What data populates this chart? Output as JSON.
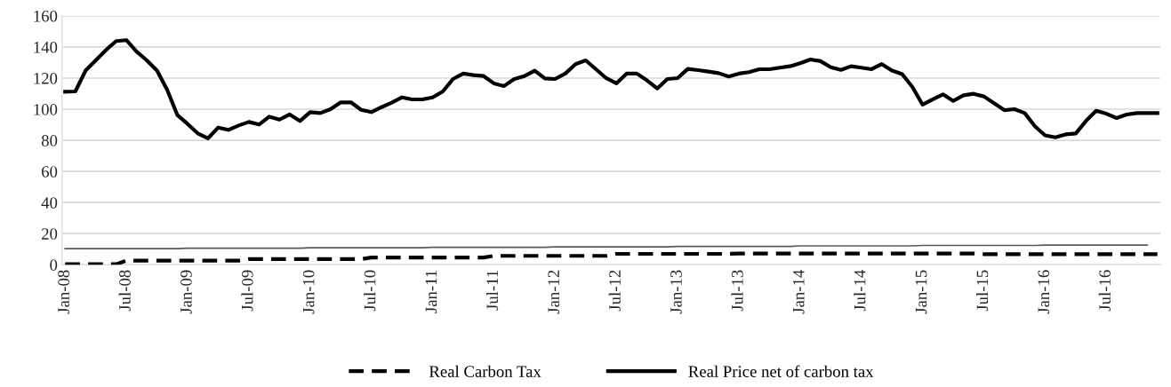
{
  "chart_data": {
    "type": "line",
    "categories": [
      "Jan-08",
      null,
      null,
      null,
      null,
      null,
      "Jul-08",
      null,
      null,
      null,
      null,
      null,
      "Jan-09",
      null,
      null,
      null,
      null,
      null,
      "Jul-09",
      null,
      null,
      null,
      null,
      null,
      "Jan-10",
      null,
      null,
      null,
      null,
      null,
      "Jul-10",
      null,
      null,
      null,
      null,
      null,
      "Jan-11",
      null,
      null,
      null,
      null,
      null,
      "Jul-11",
      null,
      null,
      null,
      null,
      null,
      "Jan-12",
      null,
      null,
      null,
      null,
      null,
      "Jul-12",
      null,
      null,
      null,
      null,
      null,
      "Jan-13",
      null,
      null,
      null,
      null,
      null,
      "Jul-13",
      null,
      null,
      null,
      null,
      null,
      "Jan-14",
      null,
      null,
      null,
      null,
      null,
      "Jul-14",
      null,
      null,
      null,
      null,
      null,
      "Jan-15",
      null,
      null,
      null,
      null,
      null,
      "Jul-15",
      null,
      null,
      null,
      null,
      null,
      "Jan-16",
      null,
      null,
      null,
      null,
      null,
      "Jul-16",
      null,
      null,
      null,
      null,
      null
    ],
    "series": [
      {
        "name": "Real Carbon Tax",
        "color": "#000000",
        "line_style": "dashed",
        "values": [
          0.3,
          0.3,
          0.3,
          0.3,
          0.3,
          0.3,
          2.6,
          2.6,
          2.6,
          2.6,
          2.6,
          2.6,
          2.6,
          2.6,
          2.6,
          2.6,
          2.6,
          2.6,
          3.6,
          3.6,
          3.6,
          3.6,
          3.6,
          3.6,
          3.6,
          3.6,
          3.6,
          3.6,
          3.6,
          3.6,
          4.6,
          4.6,
          4.6,
          4.6,
          4.6,
          4.6,
          4.6,
          4.6,
          4.6,
          4.6,
          4.6,
          4.6,
          5.7,
          5.7,
          5.7,
          5.7,
          5.7,
          5.7,
          5.7,
          5.7,
          5.7,
          5.7,
          5.7,
          5.7,
          7.0,
          7.0,
          7.0,
          7.0,
          7.0,
          7.0,
          7.0,
          7.0,
          7.0,
          7.0,
          7.0,
          7.0,
          7.2,
          7.2,
          7.2,
          7.2,
          7.2,
          7.2,
          7.2,
          7.2,
          7.2,
          7.2,
          7.2,
          7.2,
          7.2,
          7.2,
          7.2,
          7.2,
          7.2,
          7.2,
          7.2,
          7.2,
          7.2,
          7.2,
          7.2,
          7.2,
          6.8,
          6.8,
          6.8,
          6.8,
          6.8,
          6.8,
          6.8,
          6.8,
          6.8,
          6.8,
          6.8,
          6.8,
          6.8,
          6.8,
          6.8,
          6.8,
          6.8,
          6.8
        ]
      },
      {
        "name": "Real Price net of carbon tax",
        "color": "#000000",
        "line_style": "solid",
        "values": [
          111.2,
          111.4,
          124.8,
          131.4,
          138,
          143.8,
          144.4,
          137,
          131.4,
          124.8,
          112.4,
          96.2,
          90.5,
          84.4,
          81.3,
          88.2,
          86.7,
          89.5,
          91.8,
          90.1,
          95.2,
          93.3,
          96.6,
          92.4,
          98.1,
          97.5,
          100,
          104.4,
          104.4,
          99.6,
          98.1,
          101.3,
          104.2,
          107.6,
          106.3,
          106.3,
          107.6,
          111.4,
          119.4,
          122.9,
          121.9,
          121.3,
          116.6,
          114.9,
          119.4,
          121.3,
          124.8,
          119.8,
          119.4,
          122.9,
          129,
          131.4,
          125.7,
          120,
          116.6,
          122.9,
          122.9,
          118.5,
          113.3,
          119.4,
          120,
          125.9,
          125.1,
          124.2,
          123.2,
          121,
          122.9,
          123.8,
          125.7,
          125.7,
          126.7,
          127.6,
          129.5,
          132,
          130.9,
          127,
          125.3,
          127.6,
          126.7,
          125.7,
          129,
          124.8,
          122.5,
          114.3,
          102.9,
          106.3,
          109.5,
          105.3,
          108.9,
          109.9,
          108.2,
          103.8,
          99.4,
          100,
          97.5,
          89,
          83.2,
          81.9,
          83.8,
          84.4,
          92.4,
          99,
          97.1,
          94.3,
          96.6,
          97.5,
          97.5,
          97.5
        ]
      },
      {
        "color": "#595959",
        "line_style": "solid",
        "values": [
          10.3,
          10.3,
          10.3,
          10.3,
          10.3,
          10.3,
          10.3,
          10.3,
          10.3,
          10.3,
          10.3,
          10.3,
          10.6,
          10.6,
          10.6,
          10.6,
          10.6,
          10.6,
          10.6,
          10.6,
          10.6,
          10.6,
          10.6,
          10.6,
          10.9,
          10.9,
          10.9,
          10.9,
          10.9,
          10.9,
          10.9,
          10.9,
          10.9,
          10.9,
          10.9,
          10.9,
          11.2,
          11.2,
          11.2,
          11.2,
          11.2,
          11.2,
          11.2,
          11.2,
          11.2,
          11.2,
          11.2,
          11.2,
          11.5,
          11.5,
          11.5,
          11.5,
          11.5,
          11.5,
          11.5,
          11.5,
          11.5,
          11.5,
          11.5,
          11.5,
          11.8,
          11.8,
          11.8,
          11.8,
          11.8,
          11.8,
          11.8,
          11.8,
          11.8,
          11.8,
          11.8,
          11.8,
          12.1,
          12.1,
          12.1,
          12.1,
          12.1,
          12.1,
          12.1,
          12.1,
          12.1,
          12.1,
          12.1,
          12.1,
          12.4,
          12.4,
          12.4,
          12.4,
          12.4,
          12.4,
          12.4,
          12.4,
          12.4,
          12.4,
          12.4,
          12.4,
          12.6,
          12.6,
          12.6,
          12.6,
          12.6,
          12.6,
          12.6,
          12.6,
          12.6,
          12.6,
          12.6,
          null
        ]
      }
    ],
    "ylim": [
      0,
      160
    ],
    "yticks": [
      0,
      20,
      40,
      60,
      80,
      100,
      120,
      140,
      160
    ],
    "grid": "y",
    "legend": "bottom",
    "marker": "none"
  }
}
